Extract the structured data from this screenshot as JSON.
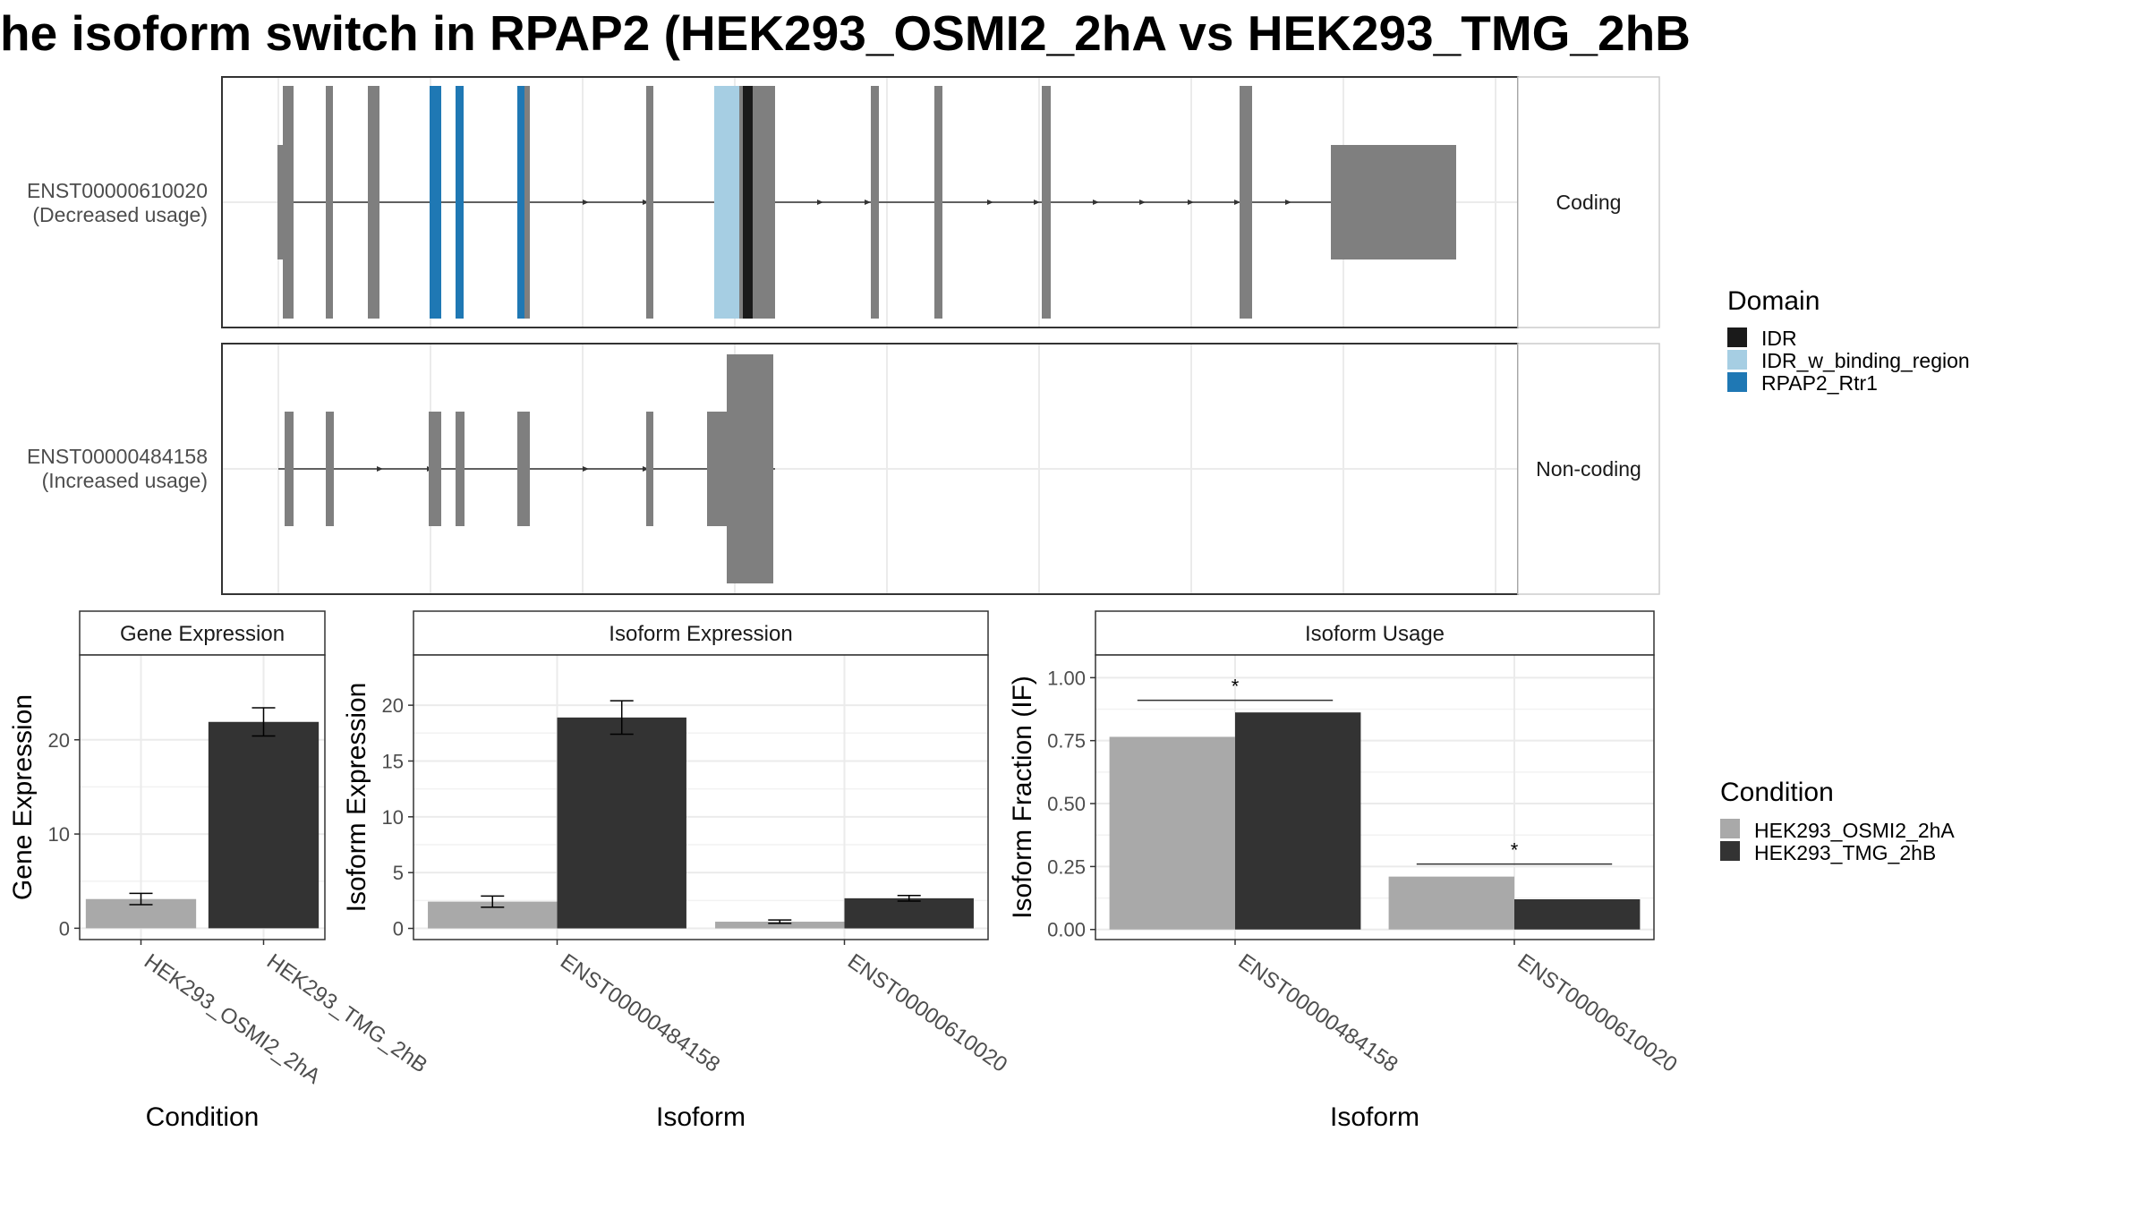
{
  "title": "he isoform switch in RPAP2 (HEK293_OSMI2_2hA vs HEK293_TMG_2hB",
  "colors": {
    "exon": "#7f7f7f",
    "IDR": "#1a1a1a",
    "IDR_w_binding_region": "#a6cee3",
    "RPAP2_Rtr1": "#1f78b4",
    "HEK293_OSMI2_2hA": "#a9a9a9",
    "HEK293_TMG_2hB": "#333333",
    "grid": "#ebebeb",
    "panel_border": "#333333"
  },
  "structure": {
    "tracks": [
      {
        "id": "ENST00000610020",
        "label_line1": "ENST00000610020",
        "label_line2": "(Decreased usage)",
        "strip": "Coding"
      },
      {
        "id": "ENST00000484158",
        "label_line1": "ENST00000484158",
        "label_line2": "(Increased usage)",
        "strip": "Non-coding"
      }
    ]
  },
  "legend_domain": {
    "title": "Domain",
    "items": [
      "IDR",
      "IDR_w_binding_region",
      "RPAP2_Rtr1"
    ]
  },
  "legend_condition": {
    "title": "Condition",
    "items": [
      "HEK293_OSMI2_2hA",
      "HEK293_TMG_2hB"
    ]
  },
  "chart_data": [
    {
      "type": "bar",
      "title": "Gene Expression",
      "xlabel": "Condition",
      "ylabel": "Gene Expression",
      "categories": [
        "HEK293_OSMI2_2hA",
        "HEK293_TMG_2hB"
      ],
      "values": [
        3.1,
        21.9
      ],
      "errors": [
        0.6,
        1.5
      ],
      "ylim": [
        -1.2,
        29
      ],
      "yticks": [
        0,
        10,
        20
      ],
      "ytick_labels": [
        "0",
        "10",
        "20"
      ],
      "grid": true
    },
    {
      "type": "bar",
      "title": "Isoform Expression",
      "xlabel": "Isoform",
      "ylabel": "Isoform Expression",
      "categories": [
        "ENST00000484158",
        "ENST00000610020"
      ],
      "series": [
        {
          "name": "HEK293_OSMI2_2hA",
          "values": [
            2.4,
            0.6
          ],
          "errors": [
            0.5,
            0.15
          ]
        },
        {
          "name": "HEK293_TMG_2hB",
          "values": [
            18.9,
            2.7
          ],
          "errors": [
            1.5,
            0.25
          ]
        }
      ],
      "ylim": [
        -1.0,
        24.5
      ],
      "yticks": [
        0,
        5,
        10,
        15,
        20
      ],
      "ytick_labels": [
        "0",
        "5",
        "10",
        "15",
        "20"
      ],
      "grid": true
    },
    {
      "type": "bar",
      "title": "Isoform Usage",
      "xlabel": "Isoform",
      "ylabel": "Isoform Fraction (IF)",
      "categories": [
        "ENST00000484158",
        "ENST00000610020"
      ],
      "series": [
        {
          "name": "HEK293_OSMI2_2hA",
          "values": [
            0.765,
            0.21
          ]
        },
        {
          "name": "HEK293_TMG_2hB",
          "values": [
            0.862,
            0.12
          ]
        }
      ],
      "annotations": [
        {
          "category": "ENST00000484158",
          "text": "*",
          "y": 0.91
        },
        {
          "category": "ENST00000610020",
          "text": "*",
          "y": 0.26
        }
      ],
      "ylim": [
        -0.04,
        1.09
      ],
      "yticks": [
        0,
        0.25,
        0.5,
        0.75,
        1.0
      ],
      "ytick_labels": [
        "0.00",
        "0.25",
        "0.50",
        "0.75",
        "1.00"
      ],
      "grid": true
    }
  ]
}
